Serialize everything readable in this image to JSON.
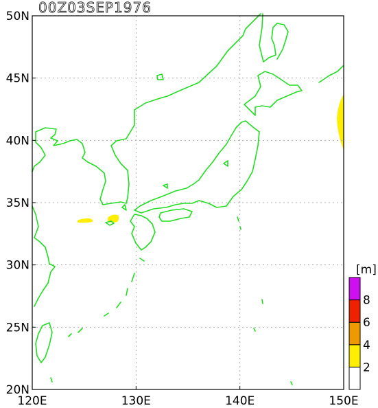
{
  "title": "00Z03SEP1976",
  "x_ticks": [
    {
      "lon": 120,
      "label": "120E"
    },
    {
      "lon": 130,
      "label": "130E"
    },
    {
      "lon": 140,
      "label": "140E"
    },
    {
      "lon": 150,
      "label": "150E"
    }
  ],
  "y_ticks": [
    {
      "lat": 20,
      "label": "20N"
    },
    {
      "lat": 25,
      "label": "25N"
    },
    {
      "lat": 30,
      "label": "30N"
    },
    {
      "lat": 35,
      "label": "35N"
    },
    {
      "lat": 40,
      "label": "40N"
    },
    {
      "lat": 45,
      "label": "45N"
    },
    {
      "lat": 50,
      "label": "50N"
    }
  ],
  "extent": {
    "lon": [
      120,
      150
    ],
    "lat": [
      20,
      50
    ]
  },
  "colors": {
    "coast": "#22dd22",
    "grid": "#aaaaaa"
  },
  "colorbar": {
    "unit": "[m]",
    "bins": [
      {
        "from": 0,
        "to": 2,
        "color": "#ffffff"
      },
      {
        "from": 2,
        "to": 4,
        "color": "#ffee00"
      },
      {
        "from": 4,
        "to": 6,
        "color": "#ee9900"
      },
      {
        "from": 6,
        "to": 8,
        "color": "#ee2200"
      },
      {
        "from": 8,
        "to": 10,
        "color": "#cc11ee"
      }
    ],
    "labels": [
      "2",
      "4",
      "6",
      "8"
    ]
  },
  "shaded_regions": [
    {
      "name": "wave-patch-east",
      "level": "2-4",
      "lon": [
        149.5,
        150
      ],
      "lat": [
        37.4,
        44.6
      ]
    },
    {
      "name": "wave-patch-korea-strait-west",
      "level": "2-4",
      "lon": [
        124.4,
        125.8
      ],
      "lat": [
        33.3,
        33.8
      ]
    },
    {
      "name": "wave-patch-korea-strait-east",
      "level": "2-4",
      "lon": [
        126.8,
        128.0
      ],
      "lat": [
        33.3,
        34.0
      ]
    }
  ]
}
